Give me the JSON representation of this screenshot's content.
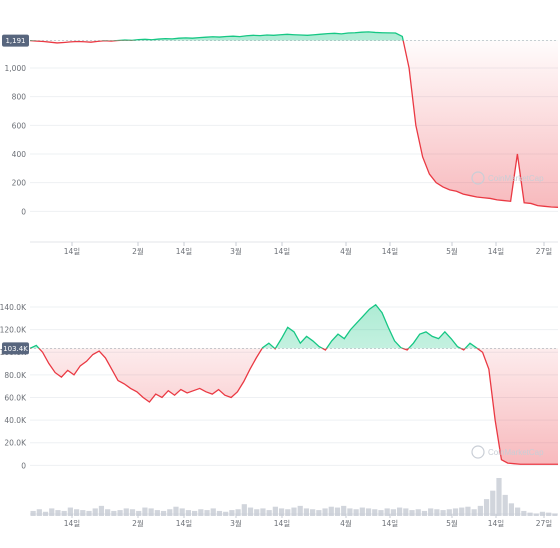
{
  "chart_data": [
    {
      "type": "line",
      "y_ticks": [
        "1,000",
        "800",
        "600",
        "400",
        "200",
        "0"
      ],
      "y_values": [
        1000,
        800,
        600,
        400,
        200,
        0
      ],
      "ylim": [
        -200,
        1300
      ],
      "x_ticks": [
        "14일",
        "2월",
        "14일",
        "3월",
        "14일",
        "4월",
        "14일",
        "5월",
        "14일",
        "27일"
      ],
      "current_label": "1,191",
      "current_value": 1191,
      "watermark": "CoinMarketCap",
      "series": [
        {
          "values": [
            1191,
            1188,
            1185,
            1180,
            1175,
            1178,
            1182,
            1185,
            1183,
            1180,
            1186,
            1190,
            1188,
            1192,
            1195,
            1193,
            1198,
            1200,
            1197,
            1202,
            1205,
            1203,
            1208,
            1210,
            1208,
            1212,
            1215,
            1218,
            1216,
            1220,
            1222,
            1219,
            1225,
            1228,
            1226,
            1230,
            1228,
            1232,
            1235,
            1232,
            1230,
            1228,
            1232,
            1236,
            1240,
            1242,
            1238,
            1244,
            1246,
            1250,
            1252,
            1248,
            1246,
            1245,
            1244,
            1220,
            1000,
            600,
            380,
            260,
            200,
            170,
            150,
            140,
            120,
            110,
            100,
            95,
            90,
            80,
            75,
            70,
            400,
            60,
            55,
            40,
            35,
            30,
            28
          ]
        }
      ]
    },
    {
      "type": "line",
      "y_ticks": [
        "140.0K",
        "120.0K",
        "100.0K",
        "80.0K",
        "60.0K",
        "40.0K",
        "20.0K",
        "0"
      ],
      "y_values": [
        140000,
        120000,
        100000,
        80000,
        60000,
        40000,
        20000,
        0
      ],
      "ylim": [
        -20000,
        155000
      ],
      "x_ticks": [
        "14일",
        "2월",
        "14일",
        "3월",
        "14일",
        "4월",
        "14일",
        "5월",
        "14일",
        "27일"
      ],
      "current_label": "103.4K",
      "current_value": 103400,
      "watermark": "CoinMarketCap",
      "series": [
        {
          "values": [
            103400,
            106000,
            100000,
            90000,
            82000,
            78000,
            84000,
            80000,
            88000,
            92000,
            98000,
            101000,
            95000,
            85000,
            75000,
            72000,
            68000,
            65000,
            60000,
            56000,
            63000,
            60000,
            66000,
            62000,
            67000,
            64000,
            66000,
            68000,
            65000,
            63000,
            67000,
            62000,
            60000,
            65000,
            74000,
            85000,
            95000,
            104000,
            108000,
            103000,
            112000,
            122000,
            118000,
            108000,
            114000,
            110000,
            105000,
            102000,
            110000,
            116000,
            112000,
            120000,
            126000,
            132000,
            138000,
            142000,
            135000,
            122000,
            110000,
            104000,
            102000,
            108000,
            116000,
            118000,
            114000,
            112000,
            118000,
            112000,
            105000,
            102000,
            108000,
            104000,
            100000,
            85000,
            40000,
            5000,
            2000,
            1500,
            1000,
            1000,
            1000,
            1000,
            1000,
            1000,
            1000
          ]
        },
        {
          "name": "volume",
          "values": [
            6,
            8,
            5,
            9,
            7,
            6,
            10,
            8,
            7,
            6,
            9,
            12,
            8,
            6,
            7,
            9,
            8,
            6,
            10,
            9,
            7,
            6,
            8,
            11,
            9,
            7,
            6,
            8,
            7,
            9,
            6,
            5,
            7,
            8,
            14,
            10,
            8,
            9,
            7,
            11,
            9,
            8,
            10,
            12,
            9,
            8,
            7,
            9,
            11,
            10,
            12,
            9,
            8,
            10,
            9,
            8,
            7,
            9,
            8,
            10,
            9,
            7,
            8,
            6,
            9,
            8,
            7,
            8,
            9,
            10,
            11,
            8,
            12,
            20,
            30,
            45,
            25,
            15,
            10,
            6,
            4,
            3,
            5,
            4,
            3
          ]
        }
      ]
    }
  ]
}
